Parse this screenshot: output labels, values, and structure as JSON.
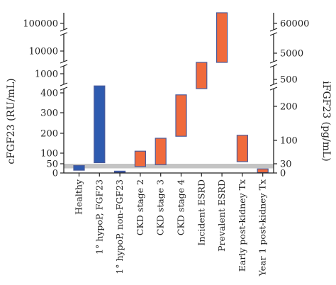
{
  "chart_data": {
    "type": "bar",
    "subtype": "floating-range",
    "left_axis_label": "cFGF23 (RU/mL)",
    "right_axis_label": "iFGF23 (pg/mL)",
    "left_ticks": [
      "100000",
      "10000",
      "1000",
      "400",
      "300",
      "200",
      "100",
      "50",
      "0"
    ],
    "right_ticks": [
      "60000",
      "5000",
      "500",
      "200",
      "100",
      "30",
      "0"
    ],
    "categories": [
      "Healthy",
      "1° hypoP, FGF23",
      "1° hypoP, non-FGF23",
      "CKD stage 2",
      "CKD stage 3",
      "CKD stage 4",
      "Incident ESRD",
      "Prevalent ESRD",
      "Early post-kidney Tx",
      "Year 1 post-kidney Tx"
    ],
    "series": [
      {
        "values": [
          {
            "low": 15,
            "high": 40
          },
          {
            "low": 55,
            "high": 525
          },
          {
            "low": 2,
            "high": 10
          },
          {
            "low": 35,
            "high": 110
          },
          {
            "low": 45,
            "high": 175
          },
          {
            "low": 185,
            "high": 390
          },
          {
            "low": 420,
            "high": 2500
          },
          {
            "low": 2500,
            "high": 105000
          },
          {
            "low": 60,
            "high": 190
          },
          {
            "low": 2,
            "high": 22
          }
        ]
      }
    ],
    "reference_band": {
      "low": 25,
      "high": 50
    },
    "colors": {
      "blue_bar": "#2e5bb0",
      "orange_bar": "#f06a3c",
      "bar_outline": "#4a5a9a",
      "band": "#c4c4c4",
      "axis": "#222222"
    },
    "bar_color_keys": [
      "blue_bar",
      "blue_bar",
      "blue_bar",
      "orange_bar",
      "orange_bar",
      "orange_bar",
      "orange_bar",
      "orange_bar",
      "orange_bar",
      "orange_bar"
    ],
    "grid": false,
    "legend": "none"
  }
}
